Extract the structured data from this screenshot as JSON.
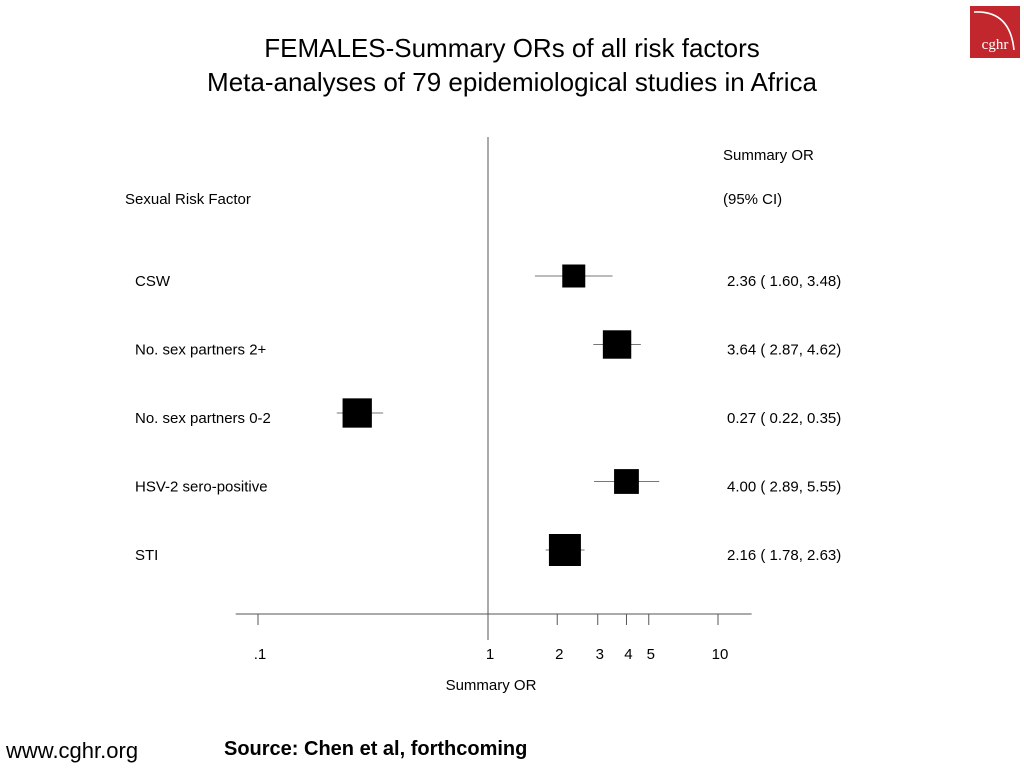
{
  "header": {
    "title_line1": "FEMALES-Summary ORs of all risk factors",
    "title_line2": "Meta-analyses of 79 epidemiological studies in Africa"
  },
  "logo": {
    "text": "cghr",
    "color": "#c1272d"
  },
  "chart_data": {
    "type": "forest",
    "column_header_left": "Sexual Risk Factor",
    "column_header_right_line1": "Summary OR",
    "column_header_right_line2": "(95% CI)",
    "xlabel": "Summary OR",
    "x_scale": "log",
    "xlim": [
      0.08,
      14
    ],
    "reference_line": 1,
    "ticks": [
      {
        "value": 0.1,
        "label": ".1"
      },
      {
        "value": 1,
        "label": "1"
      },
      {
        "value": 2,
        "label": "2"
      },
      {
        "value": 3,
        "label": "3"
      },
      {
        "value": 4,
        "label": "4"
      },
      {
        "value": 5,
        "label": "5"
      },
      {
        "value": 10,
        "label": "10"
      }
    ],
    "rows": [
      {
        "label": "CSW",
        "or": 2.36,
        "lo": 1.6,
        "hi": 3.48,
        "ci_text": "2.36 ( 1.60, 3.48)",
        "weight": 0.5
      },
      {
        "label": "No. sex partners 2+",
        "or": 3.64,
        "lo": 2.87,
        "hi": 4.62,
        "ci_text": "3.64 ( 2.87, 4.62)",
        "weight": 0.8
      },
      {
        "label": "No. sex partners 0-2",
        "or": 0.27,
        "lo": 0.22,
        "hi": 0.35,
        "ci_text": "0.27 ( 0.22, 0.35)",
        "weight": 0.85
      },
      {
        "label": "HSV-2 sero-positive",
        "or": 4.0,
        "lo": 2.89,
        "hi": 5.55,
        "ci_text": "4.00 ( 2.89, 5.55)",
        "weight": 0.6
      },
      {
        "label": "STI",
        "or": 2.16,
        "lo": 1.78,
        "hi": 2.63,
        "ci_text": "2.16 ( 1.78, 2.63)",
        "weight": 1.0
      }
    ]
  },
  "footer": {
    "website": "www.cghr.org",
    "source": "Source: Chen et al, forthcoming"
  }
}
